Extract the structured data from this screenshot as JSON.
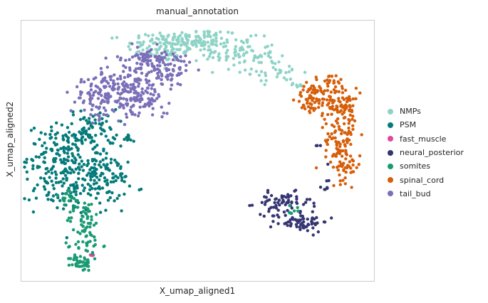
{
  "chart_data": {
    "type": "scatter",
    "title": "manual_annotation",
    "xlabel": "X_umap_aligned1",
    "ylabel": "X_umap_aligned2",
    "grid": false,
    "ticks": "none",
    "legend_position": "right",
    "series": [
      {
        "name": "NMPs",
        "color": "#8ed3c7",
        "clusters": [
          {
            "center": [
              0.4,
              0.9
            ],
            "spread": [
              0.05,
              0.03
            ],
            "n": 90
          },
          {
            "center": [
              0.5,
              0.92
            ],
            "spread": [
              0.06,
              0.025
            ],
            "n": 110
          },
          {
            "center": [
              0.62,
              0.87
            ],
            "spread": [
              0.05,
              0.03
            ],
            "n": 80
          },
          {
            "center": [
              0.72,
              0.8
            ],
            "spread": [
              0.04,
              0.02
            ],
            "n": 30
          },
          {
            "center": [
              0.78,
              0.76
            ],
            "spread": [
              0.02,
              0.01
            ],
            "n": 8
          }
        ]
      },
      {
        "name": "PSM",
        "color": "#047a7a",
        "clusters": [
          {
            "center": [
              0.2,
              0.58
            ],
            "spread": [
              0.035,
              0.04
            ],
            "n": 70
          },
          {
            "center": [
              0.12,
              0.48
            ],
            "spread": [
              0.05,
              0.06
            ],
            "n": 160
          },
          {
            "center": [
              0.16,
              0.36
            ],
            "spread": [
              0.06,
              0.05
            ],
            "n": 130
          },
          {
            "center": [
              0.23,
              0.42
            ],
            "spread": [
              0.04,
              0.05
            ],
            "n": 60
          },
          {
            "center": [
              0.3,
              0.55
            ],
            "spread": [
              0.01,
              0.015
            ],
            "n": 10
          },
          {
            "center": [
              0.28,
              0.4
            ],
            "spread": [
              0.012,
              0.01
            ],
            "n": 8
          }
        ]
      },
      {
        "name": "fast_muscle",
        "color": "#e0489c",
        "clusters": [
          {
            "center": [
              0.2,
              0.1
            ],
            "spread": [
              0.004,
              0.004
            ],
            "n": 5
          }
        ]
      },
      {
        "name": "neural_posterior",
        "color": "#353573",
        "clusters": [
          {
            "center": [
              0.74,
              0.3
            ],
            "spread": [
              0.04,
              0.02
            ],
            "n": 60
          },
          {
            "center": [
              0.79,
              0.23
            ],
            "spread": [
              0.04,
              0.02
            ],
            "n": 70
          },
          {
            "center": [
              0.86,
              0.38
            ],
            "spread": [
              0.005,
              0.02
            ],
            "n": 8
          },
          {
            "center": [
              0.84,
              0.52
            ],
            "spread": [
              0.004,
              0.004
            ],
            "n": 3
          }
        ]
      },
      {
        "name": "somites",
        "color": "#1a9a73",
        "clusters": [
          {
            "center": [
              0.18,
              0.24
            ],
            "spread": [
              0.025,
              0.04
            ],
            "n": 50
          },
          {
            "center": [
              0.19,
              0.14
            ],
            "spread": [
              0.02,
              0.03
            ],
            "n": 30
          },
          {
            "center": [
              0.17,
              0.07
            ],
            "spread": [
              0.015,
              0.015
            ],
            "n": 40
          },
          {
            "center": [
              0.13,
              0.32
            ],
            "spread": [
              0.02,
              0.02
            ],
            "n": 15
          },
          {
            "center": [
              0.77,
              0.27
            ],
            "spread": [
              0.02,
              0.01
            ],
            "n": 6
          }
        ]
      },
      {
        "name": "spinal_cord",
        "color": "#d65f0a",
        "clusters": [
          {
            "center": [
              0.82,
              0.7
            ],
            "spread": [
              0.02,
              0.03
            ],
            "n": 40
          },
          {
            "center": [
              0.87,
              0.72
            ],
            "spread": [
              0.03,
              0.04
            ],
            "n": 80
          },
          {
            "center": [
              0.92,
              0.66
            ],
            "spread": [
              0.02,
              0.04
            ],
            "n": 60
          },
          {
            "center": [
              0.9,
              0.54
            ],
            "spread": [
              0.02,
              0.05
            ],
            "n": 70
          },
          {
            "center": [
              0.92,
              0.44
            ],
            "spread": [
              0.02,
              0.03
            ],
            "n": 40
          }
        ]
      },
      {
        "name": "tail_bud",
        "color": "#7a6fb8",
        "clusters": [
          {
            "center": [
              0.22,
              0.7
            ],
            "spread": [
              0.04,
              0.04
            ],
            "n": 90
          },
          {
            "center": [
              0.3,
              0.76
            ],
            "spread": [
              0.05,
              0.04
            ],
            "n": 120
          },
          {
            "center": [
              0.34,
              0.68
            ],
            "spread": [
              0.04,
              0.03
            ],
            "n": 70
          },
          {
            "center": [
              0.4,
              0.81
            ],
            "spread": [
              0.04,
              0.03
            ],
            "n": 70
          },
          {
            "center": [
              0.36,
              0.86
            ],
            "spread": [
              0.04,
              0.02
            ],
            "n": 60
          }
        ]
      }
    ]
  }
}
